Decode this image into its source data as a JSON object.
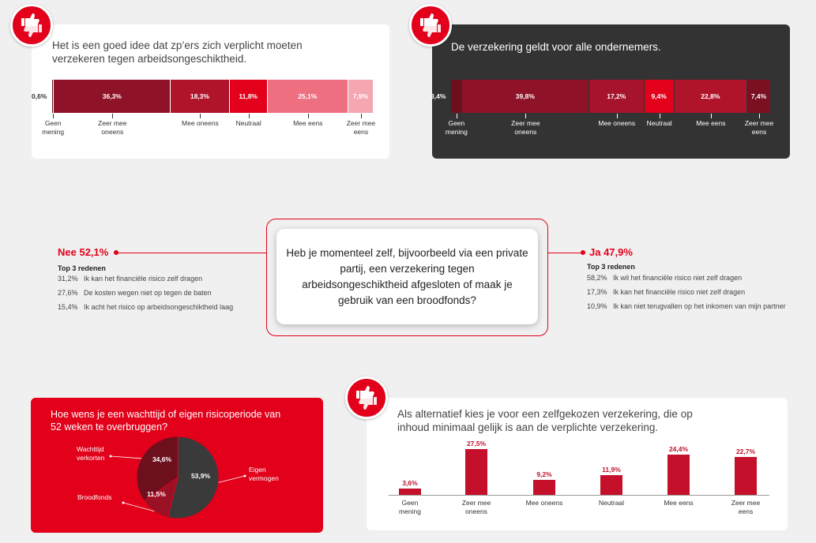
{
  "panel1": {
    "question": [
      "Het is een goed idee dat zp’ers zich verplicht moeten",
      "verzekeren tegen arbeidsongeschiktheid."
    ],
    "values": [
      "0,6%",
      "36,3%",
      "18,3%",
      "11,8%",
      "25,1%",
      "7,9%"
    ],
    "categories": [
      [
        "Geen",
        "mening"
      ],
      [
        "Zeer mee",
        "oneens"
      ],
      [
        "Mee oneens",
        ""
      ],
      [
        "Neutraal",
        ""
      ],
      [
        "Mee eens",
        ""
      ],
      [
        "Zeer mee",
        "eens"
      ]
    ]
  },
  "panel2": {
    "question": "De verzekering geldt voor alle ondernemers.",
    "values": [
      "3,4%",
      "39,8%",
      "17,2%",
      "9,4%",
      "22,8%",
      "7,4%"
    ],
    "categories": [
      [
        "Geen",
        "mening"
      ],
      [
        "Zeer mee",
        "oneens"
      ],
      [
        "Mee oneens",
        ""
      ],
      [
        "Neutraal",
        ""
      ],
      [
        "Mee eens",
        ""
      ],
      [
        "Zeer mee",
        "eens"
      ]
    ]
  },
  "center": {
    "question": "Heb je momenteel zelf, bijvoorbeeld via een private partij, een verzekering tegen arbeidsongeschiktheid afgesloten of maak je gebruik van een broodfonds?",
    "no": {
      "heading": "Nee 52,1%",
      "top3": "Top 3 redenen",
      "reasons": [
        {
          "pct": "31,2%",
          "text": "Ik kan het financiële risico zelf dragen"
        },
        {
          "pct": "27,6%",
          "text": "De kosten wegen niet op tegen de baten"
        },
        {
          "pct": "15,4%",
          "text": "Ik acht het risico op arbeidsongeschiktheid laag"
        }
      ]
    },
    "yes": {
      "heading": "Ja 47,9%",
      "top3": "Top 3 redenen",
      "reasons": [
        {
          "pct": "58,2%",
          "text": "Ik wil het financiële risico niet zelf dragen"
        },
        {
          "pct": "17,3%",
          "text": "Ik kan het financiële risico niet zelf dragen"
        },
        {
          "pct": "10,9%",
          "text": "Ik kan niet terugvallen op het inkomen van mijn partner"
        }
      ]
    }
  },
  "panel3": {
    "question": [
      "Hoe wens je een wachttijd of eigen risicoperiode van",
      "52 weken te overbruggen?"
    ],
    "slices": [
      {
        "label": [
          "Eigen",
          "vermogen"
        ],
        "value": "53,9%"
      },
      {
        "label": [
          "Broodfonds",
          ""
        ],
        "value": "11,5%"
      },
      {
        "label": [
          "Wachttijd",
          "verkorten"
        ],
        "value": "34,6%"
      }
    ]
  },
  "panel4": {
    "question": [
      "Als alternatief kies je voor een zelfgekozen verzekering, die op",
      "inhoud minimaal gelijk is aan de verplichte verzekering."
    ],
    "values": [
      "3,6%",
      "27,5%",
      "9,2%",
      "11,9%",
      "24,4%",
      "22,7%"
    ],
    "categories": [
      [
        "Geen",
        "mening"
      ],
      [
        "Zeer mee",
        "oneens"
      ],
      [
        "Mee oneens",
        ""
      ],
      [
        "Neutraal",
        ""
      ],
      [
        "Mee eens",
        ""
      ],
      [
        "Zeer mee",
        "eens"
      ]
    ]
  },
  "chart_data": [
    {
      "type": "bar",
      "title": "Het is een goed idee dat zp’ers zich verplicht moeten verzekeren tegen arbeidsongeschiktheid.",
      "categories": [
        "Geen mening",
        "Zeer mee oneens",
        "Mee oneens",
        "Neutraal",
        "Mee eens",
        "Zeer mee eens"
      ],
      "values": [
        0.6,
        36.3,
        18.3,
        11.8,
        25.1,
        7.9
      ],
      "colors": [
        "#6e0f1e",
        "#8e1228",
        "#b0142b",
        "#e2001a",
        "#ee6f80",
        "#f4a6b1"
      ]
    },
    {
      "type": "bar",
      "title": "De verzekering geldt voor alle ondernemers.",
      "categories": [
        "Geen mening",
        "Zeer mee oneens",
        "Mee oneens",
        "Neutraal",
        "Mee eens",
        "Zeer mee eens"
      ],
      "values": [
        3.4,
        39.8,
        17.2,
        9.4,
        22.8,
        7.4
      ],
      "colors": [
        "#6e0f1e",
        "#8e1228",
        "#a5142b",
        "#e2001a",
        "#b0142b",
        "#7a1022"
      ]
    },
    {
      "type": "pie",
      "title": "Hoe wens je een wachttijd of eigen risicoperiode van 52 weken te overbruggen?",
      "categories": [
        "Eigen vermogen",
        "Broodfonds",
        "Wachttijd verkorten"
      ],
      "values": [
        53.9,
        11.5,
        34.6
      ],
      "colors": [
        "#3a3a3a",
        "#9a1025",
        "#6e0f1e"
      ]
    },
    {
      "type": "bar",
      "title": "Als alternatief kies je voor een zelfgekozen verzekering, die op inhoud minimaal gelijk is aan de verplichte verzekering.",
      "categories": [
        "Geen mening",
        "Zeer mee oneens",
        "Mee oneens",
        "Neutraal",
        "Mee eens",
        "Zeer mee eens"
      ],
      "values": [
        3.6,
        27.5,
        9.2,
        11.9,
        24.4,
        22.7
      ],
      "colors": [
        "#c4102a"
      ]
    }
  ]
}
